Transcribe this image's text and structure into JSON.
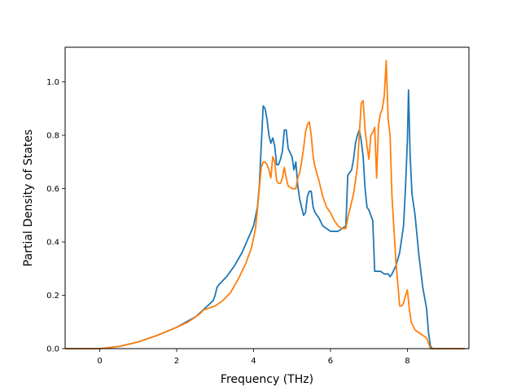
{
  "chart_data": {
    "type": "line",
    "title": "",
    "xlabel": "Frequency (THz)",
    "ylabel": "Partial Density of States",
    "xlim": [
      -0.9,
      9.6
    ],
    "ylim": [
      0.0,
      1.13
    ],
    "x_ticks": [
      0,
      2,
      4,
      6,
      8
    ],
    "x_tick_labels": [
      "0",
      "2",
      "4",
      "6",
      "8"
    ],
    "y_ticks": [
      0.0,
      0.2,
      0.4,
      0.6,
      0.8,
      1.0
    ],
    "y_tick_labels": [
      "0.0",
      "0.2",
      "0.4",
      "0.6",
      "0.8",
      "1.0"
    ],
    "grid": false,
    "series": [
      {
        "color": "#1f77b4",
        "points": [
          [
            -0.9,
            0.0
          ],
          [
            0.0,
            0.0
          ],
          [
            0.5,
            0.008
          ],
          [
            1.0,
            0.025
          ],
          [
            1.5,
            0.05
          ],
          [
            2.0,
            0.08
          ],
          [
            2.5,
            0.12
          ],
          [
            2.8,
            0.16
          ],
          [
            2.95,
            0.18
          ],
          [
            3.0,
            0.2
          ],
          [
            3.05,
            0.23
          ],
          [
            3.1,
            0.24
          ],
          [
            3.3,
            0.27
          ],
          [
            3.5,
            0.31
          ],
          [
            3.7,
            0.36
          ],
          [
            3.85,
            0.41
          ],
          [
            4.0,
            0.46
          ],
          [
            4.1,
            0.53
          ],
          [
            4.15,
            0.61
          ],
          [
            4.2,
            0.76
          ],
          [
            4.25,
            0.91
          ],
          [
            4.3,
            0.9
          ],
          [
            4.35,
            0.86
          ],
          [
            4.4,
            0.8
          ],
          [
            4.45,
            0.77
          ],
          [
            4.5,
            0.79
          ],
          [
            4.55,
            0.76
          ],
          [
            4.6,
            0.69
          ],
          [
            4.65,
            0.69
          ],
          [
            4.7,
            0.71
          ],
          [
            4.75,
            0.74
          ],
          [
            4.8,
            0.82
          ],
          [
            4.85,
            0.82
          ],
          [
            4.9,
            0.75
          ],
          [
            5.0,
            0.72
          ],
          [
            5.05,
            0.67
          ],
          [
            5.1,
            0.7
          ],
          [
            5.15,
            0.61
          ],
          [
            5.2,
            0.56
          ],
          [
            5.25,
            0.53
          ],
          [
            5.3,
            0.5
          ],
          [
            5.35,
            0.51
          ],
          [
            5.4,
            0.57
          ],
          [
            5.45,
            0.59
          ],
          [
            5.5,
            0.59
          ],
          [
            5.55,
            0.53
          ],
          [
            5.6,
            0.51
          ],
          [
            5.7,
            0.49
          ],
          [
            5.8,
            0.46
          ],
          [
            5.9,
            0.45
          ],
          [
            6.0,
            0.44
          ],
          [
            6.1,
            0.44
          ],
          [
            6.2,
            0.44
          ],
          [
            6.3,
            0.45
          ],
          [
            6.4,
            0.46
          ],
          [
            6.45,
            0.65
          ],
          [
            6.5,
            0.66
          ],
          [
            6.55,
            0.67
          ],
          [
            6.6,
            0.71
          ],
          [
            6.65,
            0.77
          ],
          [
            6.7,
            0.8
          ],
          [
            6.75,
            0.82
          ],
          [
            6.8,
            0.78
          ],
          [
            6.85,
            0.72
          ],
          [
            6.9,
            0.6
          ],
          [
            6.95,
            0.53
          ],
          [
            7.0,
            0.52
          ],
          [
            7.05,
            0.5
          ],
          [
            7.1,
            0.48
          ],
          [
            7.15,
            0.29
          ],
          [
            7.2,
            0.29
          ],
          [
            7.3,
            0.29
          ],
          [
            7.4,
            0.28
          ],
          [
            7.5,
            0.28
          ],
          [
            7.55,
            0.27
          ],
          [
            7.6,
            0.28
          ],
          [
            7.7,
            0.31
          ],
          [
            7.8,
            0.36
          ],
          [
            7.9,
            0.46
          ],
          [
            7.95,
            0.6
          ],
          [
            8.0,
            0.78
          ],
          [
            8.03,
            0.97
          ],
          [
            8.07,
            0.73
          ],
          [
            8.12,
            0.58
          ],
          [
            8.2,
            0.5
          ],
          [
            8.3,
            0.35
          ],
          [
            8.4,
            0.23
          ],
          [
            8.5,
            0.15
          ],
          [
            8.55,
            0.06
          ],
          [
            8.6,
            0.01
          ],
          [
            8.65,
            0.0
          ],
          [
            9.5,
            0.0
          ]
        ]
      },
      {
        "color": "#ff7f0e",
        "points": [
          [
            -0.9,
            0.0
          ],
          [
            0.0,
            0.0
          ],
          [
            0.5,
            0.008
          ],
          [
            1.0,
            0.025
          ],
          [
            1.5,
            0.05
          ],
          [
            2.0,
            0.08
          ],
          [
            2.3,
            0.1
          ],
          [
            2.6,
            0.13
          ],
          [
            2.7,
            0.145
          ],
          [
            3.0,
            0.16
          ],
          [
            3.2,
            0.18
          ],
          [
            3.4,
            0.21
          ],
          [
            3.6,
            0.26
          ],
          [
            3.8,
            0.32
          ],
          [
            3.95,
            0.38
          ],
          [
            4.05,
            0.45
          ],
          [
            4.1,
            0.52
          ],
          [
            4.15,
            0.6
          ],
          [
            4.2,
            0.68
          ],
          [
            4.25,
            0.7
          ],
          [
            4.3,
            0.7
          ],
          [
            4.35,
            0.69
          ],
          [
            4.4,
            0.67
          ],
          [
            4.45,
            0.64
          ],
          [
            4.5,
            0.72
          ],
          [
            4.55,
            0.7
          ],
          [
            4.6,
            0.63
          ],
          [
            4.65,
            0.62
          ],
          [
            4.7,
            0.62
          ],
          [
            4.75,
            0.64
          ],
          [
            4.8,
            0.68
          ],
          [
            4.85,
            0.64
          ],
          [
            4.9,
            0.61
          ],
          [
            5.0,
            0.6
          ],
          [
            5.1,
            0.6
          ],
          [
            5.15,
            0.64
          ],
          [
            5.2,
            0.66
          ],
          [
            5.25,
            0.7
          ],
          [
            5.3,
            0.75
          ],
          [
            5.35,
            0.81
          ],
          [
            5.4,
            0.84
          ],
          [
            5.45,
            0.85
          ],
          [
            5.5,
            0.8
          ],
          [
            5.55,
            0.72
          ],
          [
            5.6,
            0.68
          ],
          [
            5.7,
            0.63
          ],
          [
            5.8,
            0.57
          ],
          [
            5.9,
            0.53
          ],
          [
            6.0,
            0.51
          ],
          [
            6.1,
            0.48
          ],
          [
            6.2,
            0.46
          ],
          [
            6.3,
            0.45
          ],
          [
            6.4,
            0.45
          ],
          [
            6.45,
            0.49
          ],
          [
            6.5,
            0.52
          ],
          [
            6.6,
            0.58
          ],
          [
            6.7,
            0.68
          ],
          [
            6.75,
            0.8
          ],
          [
            6.8,
            0.92
          ],
          [
            6.85,
            0.93
          ],
          [
            6.9,
            0.82
          ],
          [
            6.95,
            0.76
          ],
          [
            7.0,
            0.71
          ],
          [
            7.05,
            0.8
          ],
          [
            7.1,
            0.81
          ],
          [
            7.15,
            0.83
          ],
          [
            7.2,
            0.64
          ],
          [
            7.25,
            0.84
          ],
          [
            7.3,
            0.88
          ],
          [
            7.35,
            0.9
          ],
          [
            7.4,
            0.95
          ],
          [
            7.45,
            1.08
          ],
          [
            7.5,
            0.86
          ],
          [
            7.55,
            0.8
          ],
          [
            7.6,
            0.57
          ],
          [
            7.65,
            0.45
          ],
          [
            7.7,
            0.33
          ],
          [
            7.8,
            0.16
          ],
          [
            7.85,
            0.16
          ],
          [
            7.9,
            0.17
          ],
          [
            7.95,
            0.2
          ],
          [
            8.0,
            0.22
          ],
          [
            8.05,
            0.15
          ],
          [
            8.1,
            0.1
          ],
          [
            8.2,
            0.07
          ],
          [
            8.3,
            0.06
          ],
          [
            8.4,
            0.05
          ],
          [
            8.5,
            0.04
          ],
          [
            8.55,
            0.02
          ],
          [
            8.6,
            0.0
          ],
          [
            9.5,
            0.0
          ]
        ]
      }
    ]
  }
}
